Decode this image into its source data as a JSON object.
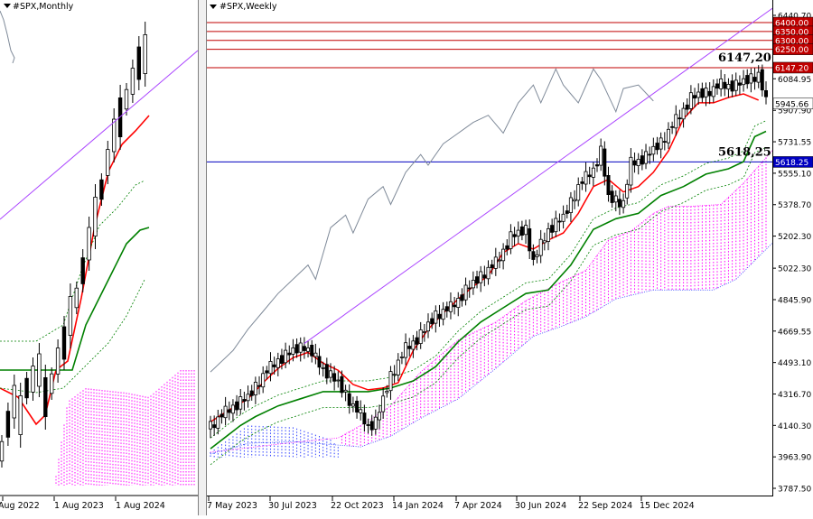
{
  "monthly": {
    "title": "#SPX,Monthly",
    "x_labels": [
      "Aug 2022",
      "1 Aug 2023",
      "1 Aug 2024"
    ]
  },
  "weekly": {
    "title": "#SPX,Weekly",
    "price_ticks": [
      "6440.70",
      "6084.95",
      "5907.90",
      "5731.55",
      "5555.10",
      "5378.70",
      "5202.30",
      "5022.30",
      "4845.90",
      "4669.55",
      "4493.10",
      "4316.70",
      "4140.30",
      "3963.90",
      "3787.50"
    ],
    "date_labels": [
      "7 May 2023",
      "30 Jul 2023",
      "22 Oct 2023",
      "14 Jan 2024",
      "7 Apr 2024",
      "30 Jun 2024",
      "22 Sep 2024",
      "15 Dec 2024"
    ],
    "resistance_levels": [
      "6400.00",
      "6350.00",
      "6300.00",
      "6250.00"
    ],
    "level_a_tag": "6147.20",
    "level_a_label": "6147,20",
    "level_b_tag": "5618.25",
    "level_b_label": "5618,25",
    "current_price": "5945.66"
  },
  "chart_data": [
    {
      "type": "candlestick",
      "title": "#SPX,Monthly",
      "x_tick_labels": [
        "Aug 2022",
        "1 Aug 2023",
        "1 Aug 2024"
      ],
      "legend": "none",
      "grid": false
    },
    {
      "type": "candlestick",
      "title": "#SPX,Weekly",
      "ylim": [
        3740,
        6480
      ],
      "y_tick_labels": [
        6440.7,
        6084.95,
        5907.9,
        5731.55,
        5555.1,
        5378.7,
        5202.3,
        5022.3,
        4845.9,
        4669.55,
        4493.1,
        4316.7,
        4140.3,
        3963.9,
        3787.5
      ],
      "x_tick_labels": [
        "7 May 2023",
        "30 Jul 2023",
        "22 Oct 2023",
        "14 Jan 2024",
        "7 Apr 2024",
        "30 Jun 2024",
        "22 Sep 2024",
        "15 Dec 2024"
      ],
      "horizontal_levels": [
        6400.0,
        6350.0,
        6300.0,
        6250.0,
        6147.2,
        5618.25
      ],
      "last_price": 5945.66,
      "legend": "none",
      "grid": false,
      "series_colors": {
        "tenkan": "#ff0000",
        "kijun": "#008000",
        "lagging": "#7f8a99",
        "cloud_bull": "#ff00ff",
        "cloud_bear": "#3344ff",
        "resistance": "#c00000",
        "support": "#0000c0",
        "trendline": "#aa44ff"
      },
      "tenkan": [
        [
          0,
          4160
        ],
        [
          6,
          4240
        ],
        [
          10,
          4290
        ],
        [
          14,
          4380
        ],
        [
          18,
          4460
        ],
        [
          22,
          4520
        ],
        [
          26,
          4550
        ],
        [
          30,
          4490
        ],
        [
          34,
          4450
        ],
        [
          38,
          4370
        ],
        [
          42,
          4340
        ],
        [
          46,
          4350
        ],
        [
          50,
          4380
        ],
        [
          54,
          4560
        ],
        [
          58,
          4680
        ],
        [
          62,
          4770
        ],
        [
          66,
          4850
        ],
        [
          70,
          4920
        ],
        [
          74,
          4980
        ],
        [
          78,
          5110
        ],
        [
          82,
          5160
        ],
        [
          86,
          5130
        ],
        [
          90,
          5180
        ],
        [
          94,
          5220
        ],
        [
          98,
          5330
        ],
        [
          102,
          5480
        ],
        [
          106,
          5520
        ],
        [
          110,
          5450
        ],
        [
          114,
          5480
        ],
        [
          118,
          5560
        ],
        [
          122,
          5680
        ],
        [
          126,
          5860
        ],
        [
          130,
          5950
        ],
        [
          134,
          5950
        ],
        [
          138,
          5980
        ],
        [
          142,
          6000
        ],
        [
          146,
          5965
        ]
      ],
      "kijun": [
        [
          0,
          4010
        ],
        [
          8,
          4140
        ],
        [
          12,
          4190
        ],
        [
          18,
          4250
        ],
        [
          24,
          4290
        ],
        [
          30,
          4330
        ],
        [
          36,
          4330
        ],
        [
          42,
          4330
        ],
        [
          48,
          4350
        ],
        [
          54,
          4390
        ],
        [
          60,
          4470
        ],
        [
          66,
          4610
        ],
        [
          72,
          4720
        ],
        [
          78,
          4800
        ],
        [
          84,
          4880
        ],
        [
          90,
          4900
        ],
        [
          96,
          5040
        ],
        [
          102,
          5240
        ],
        [
          108,
          5300
        ],
        [
          114,
          5330
        ],
        [
          120,
          5430
        ],
        [
          126,
          5480
        ],
        [
          132,
          5550
        ],
        [
          138,
          5580
        ],
        [
          142,
          5620
        ],
        [
          145,
          5760
        ],
        [
          148,
          5790
        ]
      ],
      "lagging": [
        [
          0,
          4440
        ],
        [
          6,
          4560
        ],
        [
          10,
          4680
        ],
        [
          14,
          4780
        ],
        [
          18,
          4880
        ],
        [
          22,
          4960
        ],
        [
          26,
          5040
        ],
        [
          28,
          4960
        ],
        [
          32,
          5250
        ],
        [
          36,
          5320
        ],
        [
          38,
          5220
        ],
        [
          42,
          5410
        ],
        [
          46,
          5480
        ],
        [
          48,
          5380
        ],
        [
          52,
          5560
        ],
        [
          56,
          5660
        ],
        [
          58,
          5600
        ],
        [
          62,
          5720
        ],
        [
          66,
          5780
        ],
        [
          70,
          5840
        ],
        [
          74,
          5880
        ],
        [
          78,
          5780
        ],
        [
          82,
          5950
        ],
        [
          86,
          6050
        ],
        [
          88,
          5950
        ],
        [
          92,
          6140
        ],
        [
          94,
          6050
        ],
        [
          98,
          5950
        ],
        [
          102,
          6140
        ],
        [
          104,
          6080
        ],
        [
          108,
          5900
        ],
        [
          110,
          6030
        ],
        [
          114,
          6050
        ],
        [
          118,
          5960
        ]
      ]
    }
  ]
}
